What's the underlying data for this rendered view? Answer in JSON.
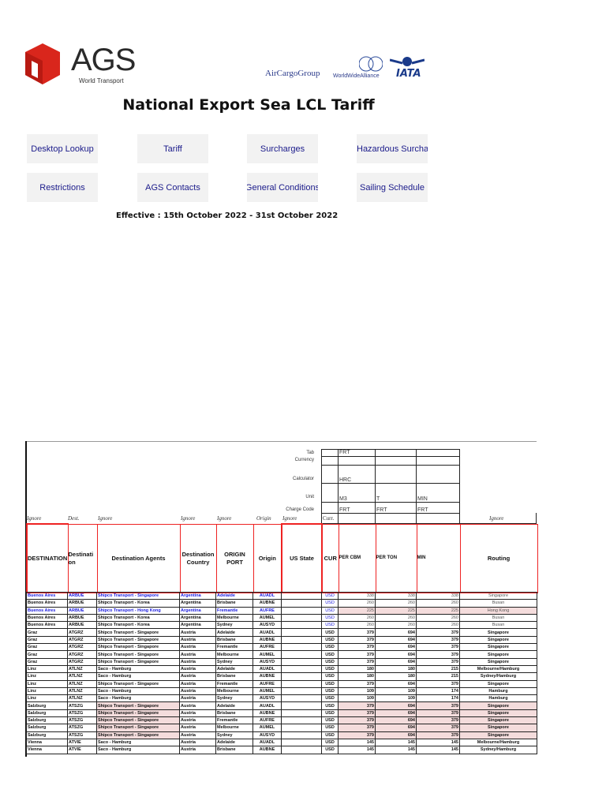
{
  "header": {
    "brand": "AGS",
    "brand_sub": "World Transport",
    "partners": [
      "AirCargoGroup",
      "WorldWideAlliance",
      "IATA"
    ],
    "brand_color": "#d9261c"
  },
  "title": "National Export Sea LCL Tariff",
  "nav": [
    {
      "label": "Desktop Lookup"
    },
    {
      "label": "Tariff"
    },
    {
      "label": "Surcharges"
    },
    {
      "label": "Hazardous Surcharges"
    },
    {
      "label": "Restrictions"
    },
    {
      "label": "AGS Contacts"
    },
    {
      "label": "General Conditions"
    },
    {
      "label": "Sailing Schedule"
    }
  ],
  "effective": "Effective : 15th October 2022 - 31st October 2022",
  "meta": {
    "labels": [
      "Tab",
      "Currency",
      "Calculator",
      "Unit",
      "Charge Code"
    ],
    "tab": "FRT",
    "calculator": "HRC",
    "units": [
      "M3",
      "T",
      "MIN"
    ],
    "charge_codes": [
      "FRT",
      "FRT",
      "FRT"
    ],
    "cur_label": "Curr."
  },
  "ignore_row": [
    "Ignore",
    "Dest.",
    "Ignore",
    "Ignore",
    "Ignore",
    "Origin",
    "Ignore",
    "Ignore"
  ],
  "columns": [
    "DESTINATION",
    "Destination",
    "Destination Agents",
    "Destination Country",
    "ORIGIN PORT",
    "Origin",
    "US State",
    "CUR",
    "PER CBM",
    "PER TON",
    "MIN",
    "Routing"
  ],
  "rows": [
    {
      "style": "blue",
      "c": [
        "Buenos Aires",
        "ARBUE",
        "Shipco Transport - Singapore",
        "Argentina",
        "Adelaide",
        "AUADL",
        "",
        "USD",
        "338",
        "338",
        "338",
        "Singapore"
      ]
    },
    {
      "style": "",
      "c": [
        "Buenos Aires",
        "ARBUE",
        "Shipco Transport - Korea",
        "Argentina",
        "Brisbane",
        "AUBNE",
        "",
        "USD",
        "260",
        "260",
        "260",
        "Busan"
      ]
    },
    {
      "style": "blue pinkv",
      "c": [
        "Buenos Aires",
        "ARBUE",
        "Shipco Transport - Hong Kong",
        "Argentina",
        "Fremantle",
        "AUFRE",
        "",
        "USD",
        "225",
        "225",
        "225",
        "Hong Kong"
      ]
    },
    {
      "style": "",
      "c": [
        "Buenos Aires",
        "ARBUE",
        "Shipco Transport - Korea",
        "Argentina",
        "Melbourne",
        "AUMEL",
        "",
        "USD",
        "260",
        "260",
        "260",
        "Busan"
      ]
    },
    {
      "style": "",
      "c": [
        "Buenos Aires",
        "ARBUE",
        "Shipco Transport - Korea",
        "Argentina",
        "Sydney",
        "AUSYD",
        "",
        "USD",
        "260",
        "260",
        "260",
        "Busan"
      ]
    },
    {
      "style": "plain",
      "c": [
        "Graz",
        "ATGRZ",
        "Shipco Transport - Singapore",
        "Austria",
        "Adelaide",
        "AUADL",
        "",
        "USD",
        "379",
        "694",
        "379",
        "Singapore"
      ]
    },
    {
      "style": "plain",
      "c": [
        "Graz",
        "ATGRZ",
        "Shipco Transport - Singapore",
        "Austria",
        "Brisbane",
        "AUBNE",
        "",
        "USD",
        "379",
        "694",
        "379",
        "Singapore"
      ]
    },
    {
      "style": "plain",
      "c": [
        "Graz",
        "ATGRZ",
        "Shipco Transport - Singapore",
        "Austria",
        "Fremantle",
        "AUFRE",
        "",
        "USD",
        "379",
        "694",
        "379",
        "Singapore"
      ]
    },
    {
      "style": "plain",
      "c": [
        "Graz",
        "ATGRZ",
        "Shipco Transport - Singapore",
        "Austria",
        "Melbourne",
        "AUMEL",
        "",
        "USD",
        "379",
        "694",
        "379",
        "Singapore"
      ]
    },
    {
      "style": "plain",
      "c": [
        "Graz",
        "ATGRZ",
        "Shipco Transport - Singapore",
        "Austria",
        "Sydney",
        "AUSYD",
        "",
        "USD",
        "379",
        "694",
        "379",
        "Singapore"
      ]
    },
    {
      "style": "plain",
      "c": [
        "Linz",
        "ATLNZ",
        "Saco - Hamburg",
        "Austria",
        "Adelaide",
        "AUADL",
        "",
        "USD",
        "180",
        "180",
        "215",
        "Melbourne/Hamburg"
      ]
    },
    {
      "style": "plain",
      "c": [
        "Linz",
        "ATLNZ",
        "Saco - Hamburg",
        "Austria",
        "Brisbane",
        "AUBNE",
        "",
        "USD",
        "180",
        "180",
        "215",
        "Sydney/Hamburg"
      ]
    },
    {
      "style": "plain",
      "c": [
        "Linz",
        "ATLNZ",
        "Shipco Transport - Singapore",
        "Austria",
        "Fremantle",
        "AUFRE",
        "",
        "USD",
        "379",
        "694",
        "379",
        "Singapore"
      ]
    },
    {
      "style": "plain",
      "c": [
        "Linz",
        "ATLNZ",
        "Saco - Hamburg",
        "Austria",
        "Melbourne",
        "AUMEL",
        "",
        "USD",
        "109",
        "109",
        "174",
        "Hamburg"
      ]
    },
    {
      "style": "plain",
      "c": [
        "Linz",
        "ATLNZ",
        "Saco - Hamburg",
        "Austria",
        "Sydney",
        "AUSYD",
        "",
        "USD",
        "109",
        "109",
        "174",
        "Hamburg"
      ]
    },
    {
      "style": "plain pinka pinkv",
      "c": [
        "Salzburg",
        "ATSZG",
        "Shipco Transport - Singapore",
        "Austria",
        "Adelaide",
        "AUADL",
        "",
        "USD",
        "379",
        "694",
        "379",
        "Singapore"
      ]
    },
    {
      "style": "plain pinka pinkv",
      "c": [
        "Salzburg",
        "ATSZG",
        "Shipco Transport - Singapore",
        "Austria",
        "Brisbane",
        "AUBNE",
        "",
        "USD",
        "379",
        "694",
        "379",
        "Singapore"
      ]
    },
    {
      "style": "plain pinka pinkv",
      "c": [
        "Salzburg",
        "ATSZG",
        "Shipco Transport - Singapore",
        "Austria",
        "Fremantle",
        "AUFRE",
        "",
        "USD",
        "379",
        "694",
        "379",
        "Singapore"
      ]
    },
    {
      "style": "plain pinka pinkv",
      "c": [
        "Salzburg",
        "ATSZG",
        "Shipco Transport - Singapore",
        "Austria",
        "Melbourne",
        "AUMEL",
        "",
        "USD",
        "379",
        "694",
        "379",
        "Singapore"
      ]
    },
    {
      "style": "plain pinka pinkv",
      "c": [
        "Salzburg",
        "ATSZG",
        "Shipco Transport - Singapore",
        "Austria",
        "Sydney",
        "AUSYD",
        "",
        "USD",
        "379",
        "694",
        "379",
        "Singapore"
      ]
    },
    {
      "style": "plain",
      "c": [
        "Vienna",
        "ATVIE",
        "Saco - Hamburg",
        "Austria",
        "Adelaide",
        "AUADL",
        "",
        "USD",
        "145",
        "145",
        "145",
        "Melbourne/Hamburg"
      ]
    },
    {
      "style": "plain",
      "c": [
        "Vienna",
        "ATVIE",
        "Saco - Hamburg",
        "Austria",
        "Brisbane",
        "AUBNE",
        "",
        "USD",
        "145",
        "145",
        "145",
        "Sydney/Hamburg"
      ]
    }
  ]
}
